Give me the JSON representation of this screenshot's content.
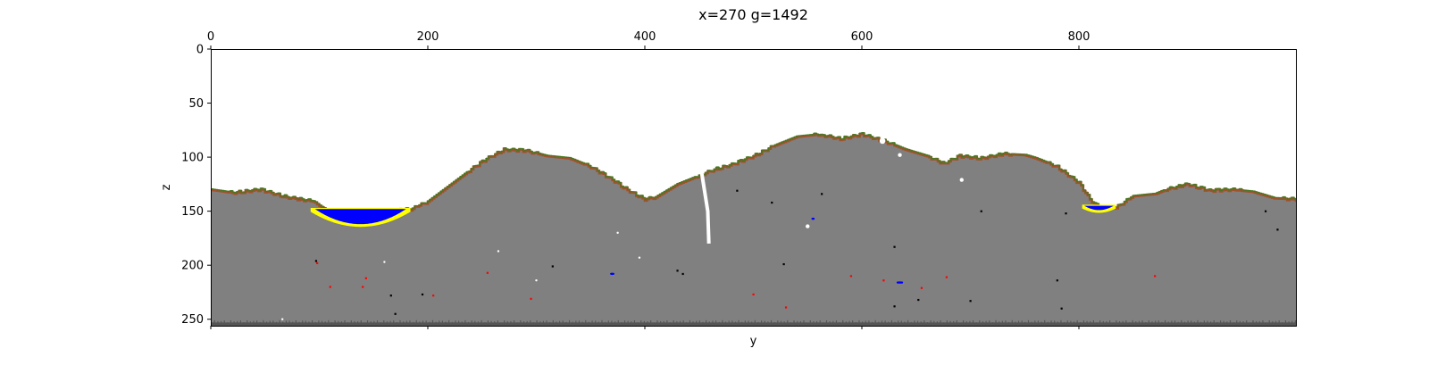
{
  "chart_data": {
    "type": "heatmap",
    "title": "x=270 g=1492",
    "xlabel": "y",
    "ylabel": "z",
    "xlim": [
      0,
      1000
    ],
    "ylim": [
      256,
      0
    ],
    "x_ticks": [
      0,
      200,
      400,
      600,
      800
    ],
    "y_ticks": [
      0,
      50,
      100,
      150,
      200,
      250
    ],
    "x_tick_position": "top",
    "grid": false,
    "colors": {
      "air": "#ffffff",
      "stone": "#808080",
      "dirt": "#a0522d",
      "grass": "#3a7d1e",
      "water": "#0000ff",
      "sand": "#ffff00",
      "ore_red": "#ff0000",
      "ore_black": "#000000",
      "bedrock": "#555555"
    },
    "surface_profile": {
      "y": [
        0,
        20,
        45,
        70,
        95,
        100,
        110,
        130,
        160,
        175,
        185,
        200,
        220,
        240,
        255,
        270,
        290,
        310,
        330,
        350,
        370,
        385,
        400,
        410,
        430,
        450,
        465,
        480,
        500,
        520,
        540,
        560,
        580,
        600,
        620,
        640,
        660,
        675,
        690,
        710,
        730,
        750,
        760,
        780,
        800,
        810,
        820,
        835,
        850,
        870,
        880,
        900,
        920,
        940,
        960,
        980,
        1000
      ],
      "z": [
        129,
        132,
        129,
        136,
        140,
        144,
        150,
        150,
        150,
        148,
        147,
        140,
        125,
        110,
        100,
        92,
        93,
        98,
        100,
        108,
        120,
        130,
        138,
        136,
        124,
        116,
        110,
        106,
        98,
        88,
        80,
        78,
        82,
        78,
        84,
        92,
        98,
        105,
        98,
        100,
        96,
        97,
        100,
        108,
        123,
        138,
        147,
        145,
        135,
        133,
        129,
        124,
        130,
        129,
        131,
        137,
        138
      ]
    },
    "water_pools": [
      {
        "y0": 96,
        "y1": 180,
        "level": 148,
        "depth": 14,
        "shore": 4
      },
      {
        "y0": 805,
        "y1": 832,
        "level": 145,
        "depth": 4,
        "shore": 2
      }
    ],
    "crack": {
      "points": [
        [
          452,
          112
        ],
        [
          458,
          150
        ],
        [
          459,
          180
        ]
      ]
    },
    "caves": [
      [
        619,
        85,
        3
      ],
      [
        635,
        98,
        2
      ],
      [
        692,
        121,
        2
      ],
      [
        375,
        170,
        1
      ],
      [
        550,
        164,
        2
      ],
      [
        395,
        193,
        1
      ],
      [
        160,
        197,
        1
      ],
      [
        300,
        214,
        1
      ],
      [
        265,
        187,
        1
      ],
      [
        66,
        250,
        1
      ]
    ],
    "blue_pockets": [
      [
        555,
        157,
        3,
        2
      ],
      [
        370,
        208,
        4,
        2
      ],
      [
        635,
        216,
        6,
        2
      ]
    ],
    "ores": [
      [
        98,
        198,
        "ore_red"
      ],
      [
        110,
        220,
        "ore_red"
      ],
      [
        140,
        220,
        "ore_red"
      ],
      [
        143,
        212,
        "ore_red"
      ],
      [
        205,
        228,
        "ore_red"
      ],
      [
        255,
        207,
        "ore_red"
      ],
      [
        295,
        231,
        "ore_red"
      ],
      [
        500,
        227,
        "ore_red"
      ],
      [
        530,
        239,
        "ore_red"
      ],
      [
        590,
        210,
        "ore_red"
      ],
      [
        620,
        214,
        "ore_red"
      ],
      [
        655,
        221,
        "ore_red"
      ],
      [
        678,
        211,
        "ore_red"
      ],
      [
        870,
        210,
        "ore_red"
      ],
      [
        97,
        196,
        "ore_black"
      ],
      [
        166,
        228,
        "ore_black"
      ],
      [
        170,
        245,
        "ore_black"
      ],
      [
        195,
        227,
        "ore_black"
      ],
      [
        315,
        201,
        "ore_black"
      ],
      [
        430,
        205,
        "ore_black"
      ],
      [
        435,
        208,
        "ore_black"
      ],
      [
        485,
        131,
        "ore_black"
      ],
      [
        517,
        142,
        "ore_black"
      ],
      [
        528,
        199,
        "ore_black"
      ],
      [
        563,
        134,
        "ore_black"
      ],
      [
        565,
        254,
        "ore_black"
      ],
      [
        630,
        183,
        "ore_black"
      ],
      [
        652,
        232,
        "ore_black"
      ],
      [
        700,
        233,
        "ore_black"
      ],
      [
        710,
        150,
        "ore_black"
      ],
      [
        784,
        240,
        "ore_black"
      ],
      [
        788,
        152,
        "ore_black"
      ],
      [
        780,
        214,
        "ore_black"
      ],
      [
        983,
        167,
        "ore_black"
      ],
      [
        972,
        150,
        "ore_black"
      ],
      [
        630,
        238,
        "ore_black"
      ]
    ],
    "bedrock_top": 253
  }
}
